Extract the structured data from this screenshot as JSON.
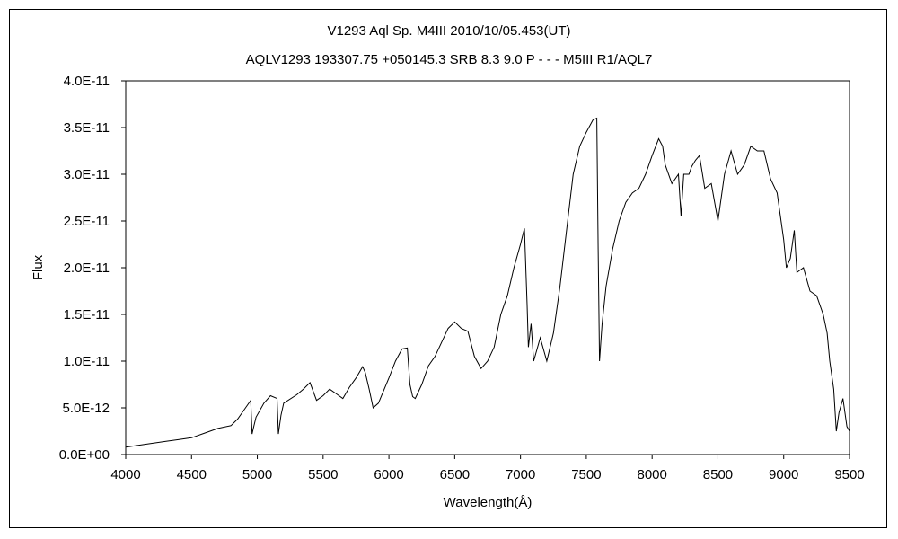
{
  "chart_data": {
    "type": "line",
    "title_line1": "V1293 Aql    Sp. M4III    2010/10/05.453(UT)",
    "title_line2": "AQLV1293 193307.75 +050145.3 SRB 8.3 9.0 P - - - M5III R1/AQL7",
    "xlabel": "Wavelength(Å)",
    "ylabel": "Flux",
    "xlim": [
      4000,
      9500
    ],
    "ylim": [
      0,
      4e-11
    ],
    "x_ticks": [
      "4000",
      "4500",
      "5000",
      "5500",
      "6000",
      "6500",
      "7000",
      "7500",
      "8000",
      "8500",
      "9000",
      "9500"
    ],
    "y_ticks": [
      "0.0E+00",
      "5.0E-12",
      "1.0E-11",
      "1.5E-11",
      "2.0E-11",
      "2.5E-11",
      "3.0E-11",
      "3.5E-11",
      "4.0E-11"
    ],
    "grid": false,
    "line_color": "#000000",
    "series": [
      {
        "x": [
          4000,
          4100,
          4200,
          4300,
          4400,
          4500,
          4600,
          4700,
          4800,
          4850,
          4900,
          4950,
          4960,
          4970,
          4990,
          5050,
          5100,
          5150,
          5160,
          5180,
          5200,
          5300,
          5350,
          5400,
          5450,
          5500,
          5550,
          5600,
          5650,
          5700,
          5750,
          5800,
          5820,
          5850,
          5880,
          5920,
          6000,
          6050,
          6100,
          6140,
          6160,
          6180,
          6200,
          6250,
          6300,
          6350,
          6400,
          6450,
          6500,
          6550,
          6600,
          6650,
          6700,
          6750,
          6800,
          6850,
          6900,
          6950,
          7000,
          7030,
          7050,
          7060,
          7080,
          7100,
          7150,
          7200,
          7250,
          7300,
          7350,
          7400,
          7450,
          7500,
          7550,
          7580,
          7590,
          7600,
          7620,
          7650,
          7700,
          7750,
          7800,
          7850,
          7900,
          7950,
          8000,
          8050,
          8080,
          8100,
          8150,
          8200,
          8220,
          8240,
          8280,
          8300,
          8330,
          8360,
          8400,
          8450,
          8500,
          8550,
          8580,
          8600,
          8650,
          8700,
          8750,
          8800,
          8850,
          8900,
          8950,
          9000,
          9020,
          9050,
          9080,
          9100,
          9150,
          9200,
          9250,
          9300,
          9330,
          9350,
          9380,
          9400,
          9420,
          9450,
          9480,
          9500
        ],
        "values": [
          8e-13,
          1e-12,
          1.2e-12,
          1.4e-12,
          1.6e-12,
          1.8e-12,
          2.3e-12,
          2.8e-12,
          3.1e-12,
          3.8e-12,
          4.8e-12,
          5.8e-12,
          2.2e-12,
          2.8e-12,
          4e-12,
          5.5e-12,
          6.3e-12,
          6e-12,
          2.2e-12,
          4.2e-12,
          5.5e-12,
          6.4e-12,
          7e-12,
          7.7e-12,
          5.8e-12,
          6.3e-12,
          7e-12,
          6.5e-12,
          6e-12,
          7.2e-12,
          8.2e-12,
          9.4e-12,
          8.8e-12,
          7e-12,
          5e-12,
          5.5e-12,
          8.2e-12,
          1e-11,
          1.13e-11,
          1.14e-11,
          7.5e-12,
          6.2e-12,
          6e-12,
          7.5e-12,
          9.5e-12,
          1.05e-11,
          1.2e-11,
          1.35e-11,
          1.42e-11,
          1.35e-11,
          1.32e-11,
          1.05e-11,
          9.2e-12,
          1e-11,
          1.15e-11,
          1.5e-11,
          1.7e-11,
          2e-11,
          2.25e-11,
          2.42e-11,
          1.6e-11,
          1.15e-11,
          1.4e-11,
          1e-11,
          1.25e-11,
          1e-11,
          1.3e-11,
          1.8e-11,
          2.4e-11,
          3e-11,
          3.3e-11,
          3.45e-11,
          3.58e-11,
          3.6e-11,
          2.2e-11,
          1e-11,
          1.4e-11,
          1.8e-11,
          2.2e-11,
          2.5e-11,
          2.7e-11,
          2.8e-11,
          2.85e-11,
          3e-11,
          3.2e-11,
          3.38e-11,
          3.3e-11,
          3.1e-11,
          2.9e-11,
          3e-11,
          2.55e-11,
          3e-11,
          3e-11,
          3.08e-11,
          3.15e-11,
          3.2e-11,
          2.85e-11,
          2.9e-11,
          2.5e-11,
          3e-11,
          3.15e-11,
          3.25e-11,
          3e-11,
          3.1e-11,
          3.3e-11,
          3.25e-11,
          3.25e-11,
          2.95e-11,
          2.8e-11,
          2.3e-11,
          2e-11,
          2.1e-11,
          2.4e-11,
          1.95e-11,
          2e-11,
          1.75e-11,
          1.7e-11,
          1.5e-11,
          1.3e-11,
          1e-11,
          7e-12,
          2.5e-12,
          4.5e-12,
          6e-12,
          3e-12,
          2.5e-12
        ]
      }
    ]
  }
}
